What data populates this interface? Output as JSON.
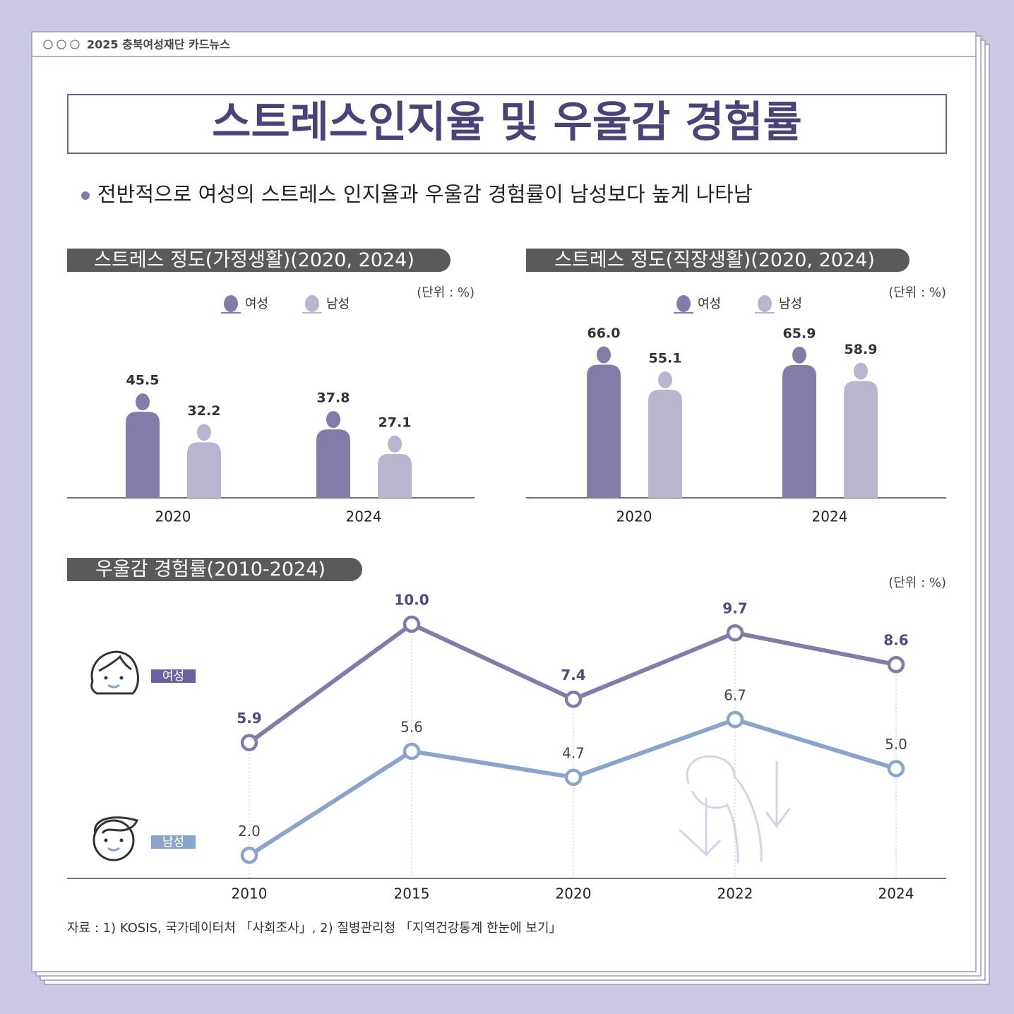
{
  "header": {
    "window_title": "2025 충북여성재단 카드뉴스"
  },
  "title": "스트레스인지율 및 우울감 경험률",
  "summary": "전반적으로 여성의 스트레스 인지율과 우울감 경험률이 남성보다 높게 나타남",
  "chart_data": [
    {
      "type": "bar",
      "title": "스트레스 정도(가정생활)(2020, 2024)",
      "unit": "(단위 : %)",
      "categories": [
        "2020",
        "2024"
      ],
      "series": [
        {
          "name": "여성",
          "color": "#837ca8",
          "values": [
            45.5,
            37.8
          ]
        },
        {
          "name": "남성",
          "color": "#b8b6cf",
          "values": [
            32.2,
            27.1
          ]
        }
      ],
      "ylim": [
        0,
        80
      ]
    },
    {
      "type": "bar",
      "title": "스트레스 정도(직장생활)(2020, 2024)",
      "unit": "(단위 : %)",
      "categories": [
        "2020",
        "2024"
      ],
      "series": [
        {
          "name": "여성",
          "color": "#837ca8",
          "values": [
            66.0,
            65.9
          ],
          "value_labels": [
            "66.0",
            "65.9"
          ]
        },
        {
          "name": "남성",
          "color": "#b8b6cf",
          "values": [
            55.1,
            58.9
          ]
        }
      ],
      "ylim": [
        0,
        80
      ]
    },
    {
      "type": "line",
      "title": "우울감 경험률(2010-2024)",
      "unit": "(단위 : %)",
      "categories": [
        "2010",
        "2015",
        "2020",
        "2022",
        "2024"
      ],
      "series": [
        {
          "name": "여성",
          "color": "#857aa8",
          "values": [
            5.9,
            10.0,
            7.4,
            9.7,
            8.6
          ],
          "value_labels": [
            "5.9",
            "10.0",
            "7.4",
            "9.7",
            "8.6"
          ]
        },
        {
          "name": "남성",
          "color": "#8aa5c9",
          "values": [
            2.0,
            5.6,
            4.7,
            6.7,
            5.0
          ],
          "value_labels": [
            "2.0",
            "5.6",
            "4.7",
            "6.7",
            "5.0"
          ]
        }
      ],
      "ylim": [
        1.2,
        11
      ]
    }
  ],
  "source": "자료 : 1) KOSIS, 국가데이터처 「사회조사」,  2) 질병관리청 「지역건강통계 한눈에 보기」"
}
